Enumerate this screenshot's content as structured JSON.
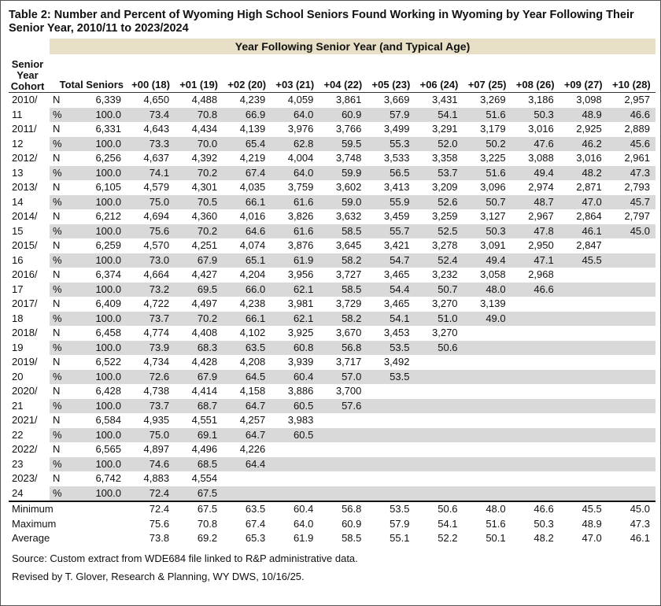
{
  "title": "Table 2: Number and Percent of Wyoming High School Seniors Found Working in Wyoming by Year Following Their Senior Year, 2010/11 to 2023/2024",
  "group_header": "Year Following Senior Year (and Typical Age)",
  "cohort_header": "Senior Year Cohort",
  "columns": [
    "Total Seniors",
    "+00 (18)",
    "+01 (19)",
    "+02 (20)",
    "+03 (21)",
    "+04 (22)",
    "+05 (23)",
    "+06 (24)",
    "+07 (25)",
    "+08 (26)",
    "+09 (27)",
    "+10 (28)"
  ],
  "cohorts": [
    {
      "label": "2010/ 11",
      "rows": [
        {
          "measure": "N",
          "values": [
            "6,339",
            "4,650",
            "4,488",
            "4,239",
            "4,059",
            "3,861",
            "3,669",
            "3,431",
            "3,269",
            "3,186",
            "3,098",
            "2,957"
          ]
        },
        {
          "measure": "%",
          "values": [
            "100.0",
            "73.4",
            "70.8",
            "66.9",
            "64.0",
            "60.9",
            "57.9",
            "54.1",
            "51.6",
            "50.3",
            "48.9",
            "46.6"
          ]
        }
      ]
    },
    {
      "label": "2011/ 12",
      "rows": [
        {
          "measure": "N",
          "values": [
            "6,331",
            "4,643",
            "4,434",
            "4,139",
            "3,976",
            "3,766",
            "3,499",
            "3,291",
            "3,179",
            "3,016",
            "2,925",
            "2,889"
          ]
        },
        {
          "measure": "%",
          "values": [
            "100.0",
            "73.3",
            "70.0",
            "65.4",
            "62.8",
            "59.5",
            "55.3",
            "52.0",
            "50.2",
            "47.6",
            "46.2",
            "45.6"
          ]
        }
      ]
    },
    {
      "label": "2012/ 13",
      "rows": [
        {
          "measure": "N",
          "values": [
            "6,256",
            "4,637",
            "4,392",
            "4,219",
            "4,004",
            "3,748",
            "3,533",
            "3,358",
            "3,225",
            "3,088",
            "3,016",
            "2,961"
          ]
        },
        {
          "measure": "%",
          "values": [
            "100.0",
            "74.1",
            "70.2",
            "67.4",
            "64.0",
            "59.9",
            "56.5",
            "53.7",
            "51.6",
            "49.4",
            "48.2",
            "47.3"
          ]
        }
      ]
    },
    {
      "label": "2013/ 14",
      "rows": [
        {
          "measure": "N",
          "values": [
            "6,105",
            "4,579",
            "4,301",
            "4,035",
            "3,759",
            "3,602",
            "3,413",
            "3,209",
            "3,096",
            "2,974",
            "2,871",
            "2,793"
          ]
        },
        {
          "measure": "%",
          "values": [
            "100.0",
            "75.0",
            "70.5",
            "66.1",
            "61.6",
            "59.0",
            "55.9",
            "52.6",
            "50.7",
            "48.7",
            "47.0",
            "45.7"
          ]
        }
      ]
    },
    {
      "label": "2014/ 15",
      "rows": [
        {
          "measure": "N",
          "values": [
            "6,212",
            "4,694",
            "4,360",
            "4,016",
            "3,826",
            "3,632",
            "3,459",
            "3,259",
            "3,127",
            "2,967",
            "2,864",
            "2,797"
          ]
        },
        {
          "measure": "%",
          "values": [
            "100.0",
            "75.6",
            "70.2",
            "64.6",
            "61.6",
            "58.5",
            "55.7",
            "52.5",
            "50.3",
            "47.8",
            "46.1",
            "45.0"
          ]
        }
      ]
    },
    {
      "label": "2015/ 16",
      "rows": [
        {
          "measure": "N",
          "values": [
            "6,259",
            "4,570",
            "4,251",
            "4,074",
            "3,876",
            "3,645",
            "3,421",
            "3,278",
            "3,091",
            "2,950",
            "2,847"
          ]
        },
        {
          "measure": "%",
          "values": [
            "100.0",
            "73.0",
            "67.9",
            "65.1",
            "61.9",
            "58.2",
            "54.7",
            "52.4",
            "49.4",
            "47.1",
            "45.5"
          ]
        }
      ]
    },
    {
      "label": "2016/ 17",
      "rows": [
        {
          "measure": "N",
          "values": [
            "6,374",
            "4,664",
            "4,427",
            "4,204",
            "3,956",
            "3,727",
            "3,465",
            "3,232",
            "3,058",
            "2,968"
          ]
        },
        {
          "measure": "%",
          "values": [
            "100.0",
            "73.2",
            "69.5",
            "66.0",
            "62.1",
            "58.5",
            "54.4",
            "50.7",
            "48.0",
            "46.6"
          ]
        }
      ]
    },
    {
      "label": "2017/ 18",
      "rows": [
        {
          "measure": "N",
          "values": [
            "6,409",
            "4,722",
            "4,497",
            "4,238",
            "3,981",
            "3,729",
            "3,465",
            "3,270",
            "3,139"
          ]
        },
        {
          "measure": "%",
          "values": [
            "100.0",
            "73.7",
            "70.2",
            "66.1",
            "62.1",
            "58.2",
            "54.1",
            "51.0",
            "49.0"
          ]
        }
      ]
    },
    {
      "label": "2018/ 19",
      "rows": [
        {
          "measure": "N",
          "values": [
            "6,458",
            "4,774",
            "4,408",
            "4,102",
            "3,925",
            "3,670",
            "3,453",
            "3,270"
          ]
        },
        {
          "measure": "%",
          "values": [
            "100.0",
            "73.9",
            "68.3",
            "63.5",
            "60.8",
            "56.8",
            "53.5",
            "50.6"
          ]
        }
      ]
    },
    {
      "label": "2019/ 20",
      "rows": [
        {
          "measure": "N",
          "values": [
            "6,522",
            "4,734",
            "4,428",
            "4,208",
            "3,939",
            "3,717",
            "3,492"
          ]
        },
        {
          "measure": "%",
          "values": [
            "100.0",
            "72.6",
            "67.9",
            "64.5",
            "60.4",
            "57.0",
            "53.5"
          ]
        }
      ]
    },
    {
      "label": "2020/ 21",
      "rows": [
        {
          "measure": "N",
          "values": [
            "6,428",
            "4,738",
            "4,414",
            "4,158",
            "3,886",
            "3,700"
          ]
        },
        {
          "measure": "%",
          "values": [
            "100.0",
            "73.7",
            "68.7",
            "64.7",
            "60.5",
            "57.6"
          ]
        }
      ]
    },
    {
      "label": "2021/ 22",
      "rows": [
        {
          "measure": "N",
          "values": [
            "6,584",
            "4,935",
            "4,551",
            "4,257",
            "3,983"
          ]
        },
        {
          "measure": "%",
          "values": [
            "100.0",
            "75.0",
            "69.1",
            "64.7",
            "60.5"
          ]
        }
      ]
    },
    {
      "label": "2022/ 23",
      "rows": [
        {
          "measure": "N",
          "values": [
            "6,565",
            "4,897",
            "4,496",
            "4,226"
          ]
        },
        {
          "measure": "%",
          "values": [
            "100.0",
            "74.6",
            "68.5",
            "64.4"
          ]
        }
      ]
    },
    {
      "label": "2023/ 24",
      "rows": [
        {
          "measure": "N",
          "values": [
            "6,742",
            "4,883",
            "4,554"
          ]
        },
        {
          "measure": "%",
          "values": [
            "100.0",
            "72.4",
            "67.5"
          ]
        }
      ]
    }
  ],
  "summary": [
    {
      "label": "Minimum",
      "values": [
        "72.4",
        "67.5",
        "63.5",
        "60.4",
        "56.8",
        "53.5",
        "50.6",
        "48.0",
        "46.6",
        "45.5",
        "45.0"
      ]
    },
    {
      "label": "Maximum",
      "values": [
        "75.6",
        "70.8",
        "67.4",
        "64.0",
        "60.9",
        "57.9",
        "54.1",
        "51.6",
        "50.3",
        "48.9",
        "47.3"
      ]
    },
    {
      "label": "Average",
      "values": [
        "73.8",
        "69.2",
        "65.3",
        "61.9",
        "58.5",
        "55.1",
        "52.2",
        "50.1",
        "48.2",
        "47.0",
        "46.1"
      ]
    }
  ],
  "notes": [
    "Source: Custom extract from WDE684 file linked to R&P administrative data.",
    "Revised by T. Glover, Research & Planning, WY DWS, 10/16/25."
  ]
}
